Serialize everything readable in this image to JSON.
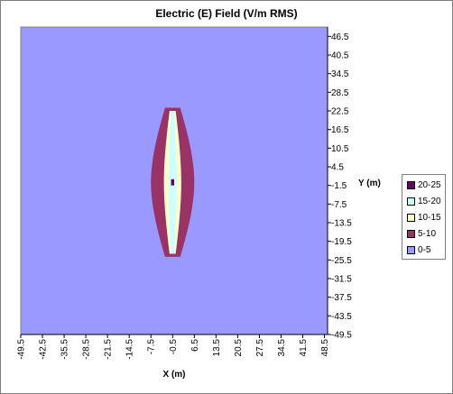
{
  "chart_data": {
    "type": "heatmap",
    "title": "Electric (E) Field (V/m RMS)",
    "xlabel": "X (m)",
    "ylabel": "Y (m)",
    "xlim": [
      -49.5,
      49.5
    ],
    "ylim": [
      -49.5,
      49.5
    ],
    "x_ticks": [
      "-49.5",
      "-42.5",
      "-35.5",
      "-28.5",
      "-21.5",
      "-14.5",
      "-7.5",
      "-0.5",
      "6.5",
      "13.5",
      "20.5",
      "27.5",
      "34.5",
      "41.5",
      "48.5"
    ],
    "y_ticks": [
      "46.5",
      "40.5",
      "34.5",
      "28.5",
      "22.5",
      "16.5",
      "10.5",
      "4.5",
      "-1.5",
      "-7.5",
      "-13.5",
      "-19.5",
      "-25.5",
      "-31.5",
      "-37.5",
      "-43.5",
      "-49.5"
    ],
    "levels": [
      {
        "label": "20-25",
        "color": "#660066"
      },
      {
        "label": "15-20",
        "color": "#ccffff"
      },
      {
        "label": "10-15",
        "color": "#ffffcc"
      },
      {
        "label": "5-10",
        "color": "#993366"
      },
      {
        "label": "0-5",
        "color": "#9999ff"
      }
    ],
    "background_level": "0-5",
    "regions": [
      {
        "level": "5-10",
        "x_center": -0.5,
        "y_top": 23.5,
        "y_bottom": -24.5,
        "max_half_width": 7
      },
      {
        "level": "10-15",
        "x_center": -0.5,
        "y_top": 22.5,
        "y_bottom": -23.5,
        "max_half_width": 2.8
      },
      {
        "level": "15-20",
        "x_center": -0.5,
        "y_top": 22.5,
        "y_bottom": -23.5,
        "max_half_width": 1.3
      },
      {
        "level": "20-25",
        "x_center": -0.5,
        "y_top": 0.5,
        "y_bottom": -1.5,
        "max_half_width": 0.5
      }
    ],
    "legend_position": "right"
  }
}
